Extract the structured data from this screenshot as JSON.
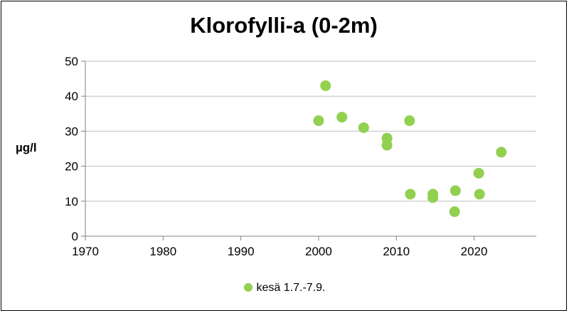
{
  "chart_data": {
    "type": "scatter",
    "title": "Klorofylli-a (0-2m)",
    "ylabel": "µg/l",
    "xlabel": "",
    "xlim": [
      1970,
      2028
    ],
    "ylim": [
      0,
      50
    ],
    "x_ticks": [
      1970,
      1980,
      1990,
      2000,
      2010,
      2020
    ],
    "y_ticks": [
      0,
      10,
      20,
      30,
      40,
      50
    ],
    "grid": "horizontal",
    "legend_position": "bottom",
    "series": [
      {
        "name": "kesä 1.7.-7.9.",
        "color": "#92d050",
        "points": [
          {
            "x": 2000.0,
            "y": 33
          },
          {
            "x": 2000.9,
            "y": 43
          },
          {
            "x": 2003.0,
            "y": 34
          },
          {
            "x": 2005.8,
            "y": 31
          },
          {
            "x": 2008.8,
            "y": 28
          },
          {
            "x": 2008.8,
            "y": 26
          },
          {
            "x": 2011.7,
            "y": 33
          },
          {
            "x": 2011.8,
            "y": 12
          },
          {
            "x": 2014.7,
            "y": 12
          },
          {
            "x": 2014.7,
            "y": 11
          },
          {
            "x": 2017.6,
            "y": 13
          },
          {
            "x": 2017.5,
            "y": 7
          },
          {
            "x": 2020.6,
            "y": 18
          },
          {
            "x": 2020.7,
            "y": 12
          },
          {
            "x": 2023.5,
            "y": 24
          }
        ]
      }
    ]
  }
}
